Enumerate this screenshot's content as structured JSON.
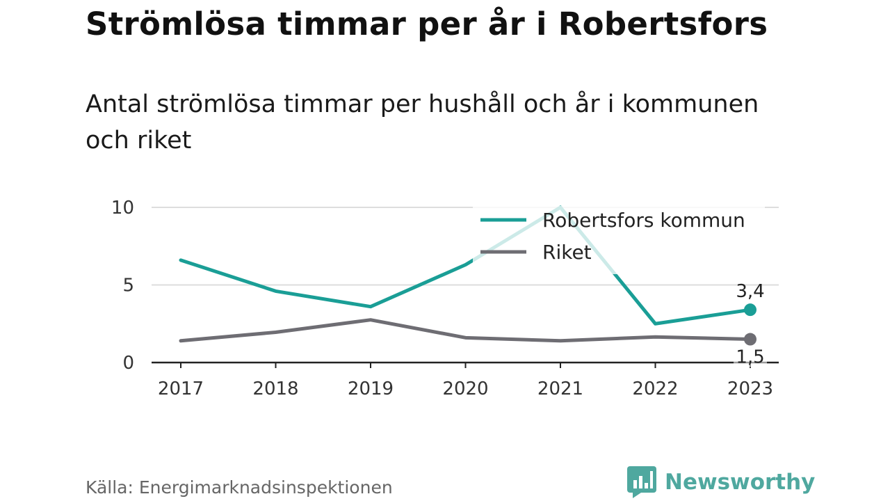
{
  "title": "Strömlösa timmar per år i Robertsfors",
  "subtitle": "Antal strömlösa timmar per hushåll och år i kommunen och riket",
  "source": "Källa: Energimarknadsinspektionen",
  "brand": {
    "name": "Newsworthy",
    "icon": "newsworthy-logo-icon",
    "color": "#4fa89f"
  },
  "chart_data": {
    "type": "line",
    "x": [
      "2017",
      "2018",
      "2019",
      "2020",
      "2021",
      "2022",
      "2023"
    ],
    "ylim": [
      0,
      10
    ],
    "yticks": [
      0,
      5,
      10
    ],
    "grid": true,
    "legend_position": "top-right",
    "series": [
      {
        "name": "Robertsfors kommun",
        "color": "#1a9e96",
        "values": [
          6.6,
          4.6,
          3.6,
          6.3,
          10.0,
          2.5,
          3.4
        ],
        "end_label": "3,4"
      },
      {
        "name": "Riket",
        "color": "#6e6d73",
        "values": [
          1.4,
          1.95,
          2.75,
          1.6,
          1.4,
          1.65,
          1.5
        ],
        "end_label": "1,5"
      }
    ]
  }
}
